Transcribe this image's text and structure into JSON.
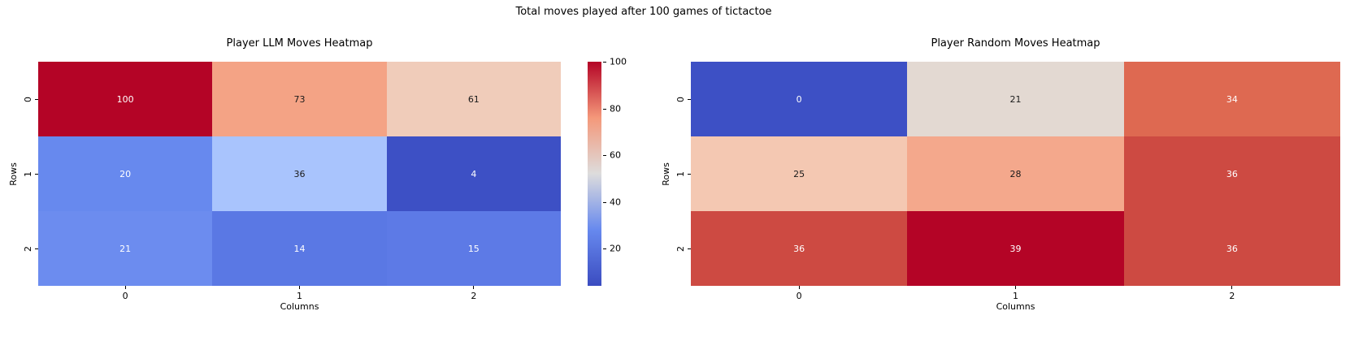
{
  "figure": {
    "suptitle": "Total moves played after 100 games of tictactoe",
    "background": "#ffffff"
  },
  "chart_data": [
    {
      "type": "heatmap",
      "title": "Player LLM Moves Heatmap",
      "xlabel": "Columns",
      "ylabel": "Rows",
      "x_ticks": [
        "0",
        "1",
        "2"
      ],
      "y_ticks": [
        "0",
        "1",
        "2"
      ],
      "values": [
        [
          100,
          73,
          61
        ],
        [
          20,
          36,
          4
        ],
        [
          21,
          14,
          15
        ]
      ],
      "vmin": 4,
      "vmax": 100,
      "colormap": "coolwarm",
      "colormap_stops": [
        "#3b4cc0",
        "#6789ee",
        "#dddcdc",
        "#f4987a",
        "#b40426"
      ],
      "colorbar_ticks": [
        20,
        40,
        60,
        80,
        100
      ],
      "cell_colors": [
        [
          "#b40426",
          "#f4a385",
          "#f0ccba"
        ],
        [
          "#6789ee",
          "#a9c4fd",
          "#3d50c5"
        ],
        [
          "#6c8cef",
          "#5a78e4",
          "#5d7ae6"
        ]
      ],
      "text_colors": [
        [
          "#ffffff",
          "#1a1a1a",
          "#1a1a1a"
        ],
        [
          "#ffffff",
          "#1a1a1a",
          "#ffffff"
        ],
        [
          "#ffffff",
          "#ffffff",
          "#ffffff"
        ]
      ]
    },
    {
      "type": "heatmap",
      "title": "Player Random Moves Heatmap",
      "xlabel": "Columns",
      "ylabel": "Rows",
      "x_ticks": [
        "0",
        "1",
        "2"
      ],
      "y_ticks": [
        "0",
        "1",
        "2"
      ],
      "values": [
        [
          0,
          21,
          34
        ],
        [
          25,
          28,
          36
        ],
        [
          36,
          39,
          36
        ]
      ],
      "vmin": 0,
      "vmax": 39,
      "colormap": "coolwarm",
      "cell_colors": [
        [
          "#3d50c5",
          "#e3d9d2",
          "#de6951"
        ],
        [
          "#f4c8b2",
          "#f4a88c",
          "#cd4a42"
        ],
        [
          "#cd4a42",
          "#b40426",
          "#cd4a42"
        ]
      ],
      "text_colors": [
        [
          "#ffffff",
          "#1a1a1a",
          "#ffffff"
        ],
        [
          "#1a1a1a",
          "#1a1a1a",
          "#ffffff"
        ],
        [
          "#ffffff",
          "#ffffff",
          "#ffffff"
        ]
      ]
    }
  ]
}
